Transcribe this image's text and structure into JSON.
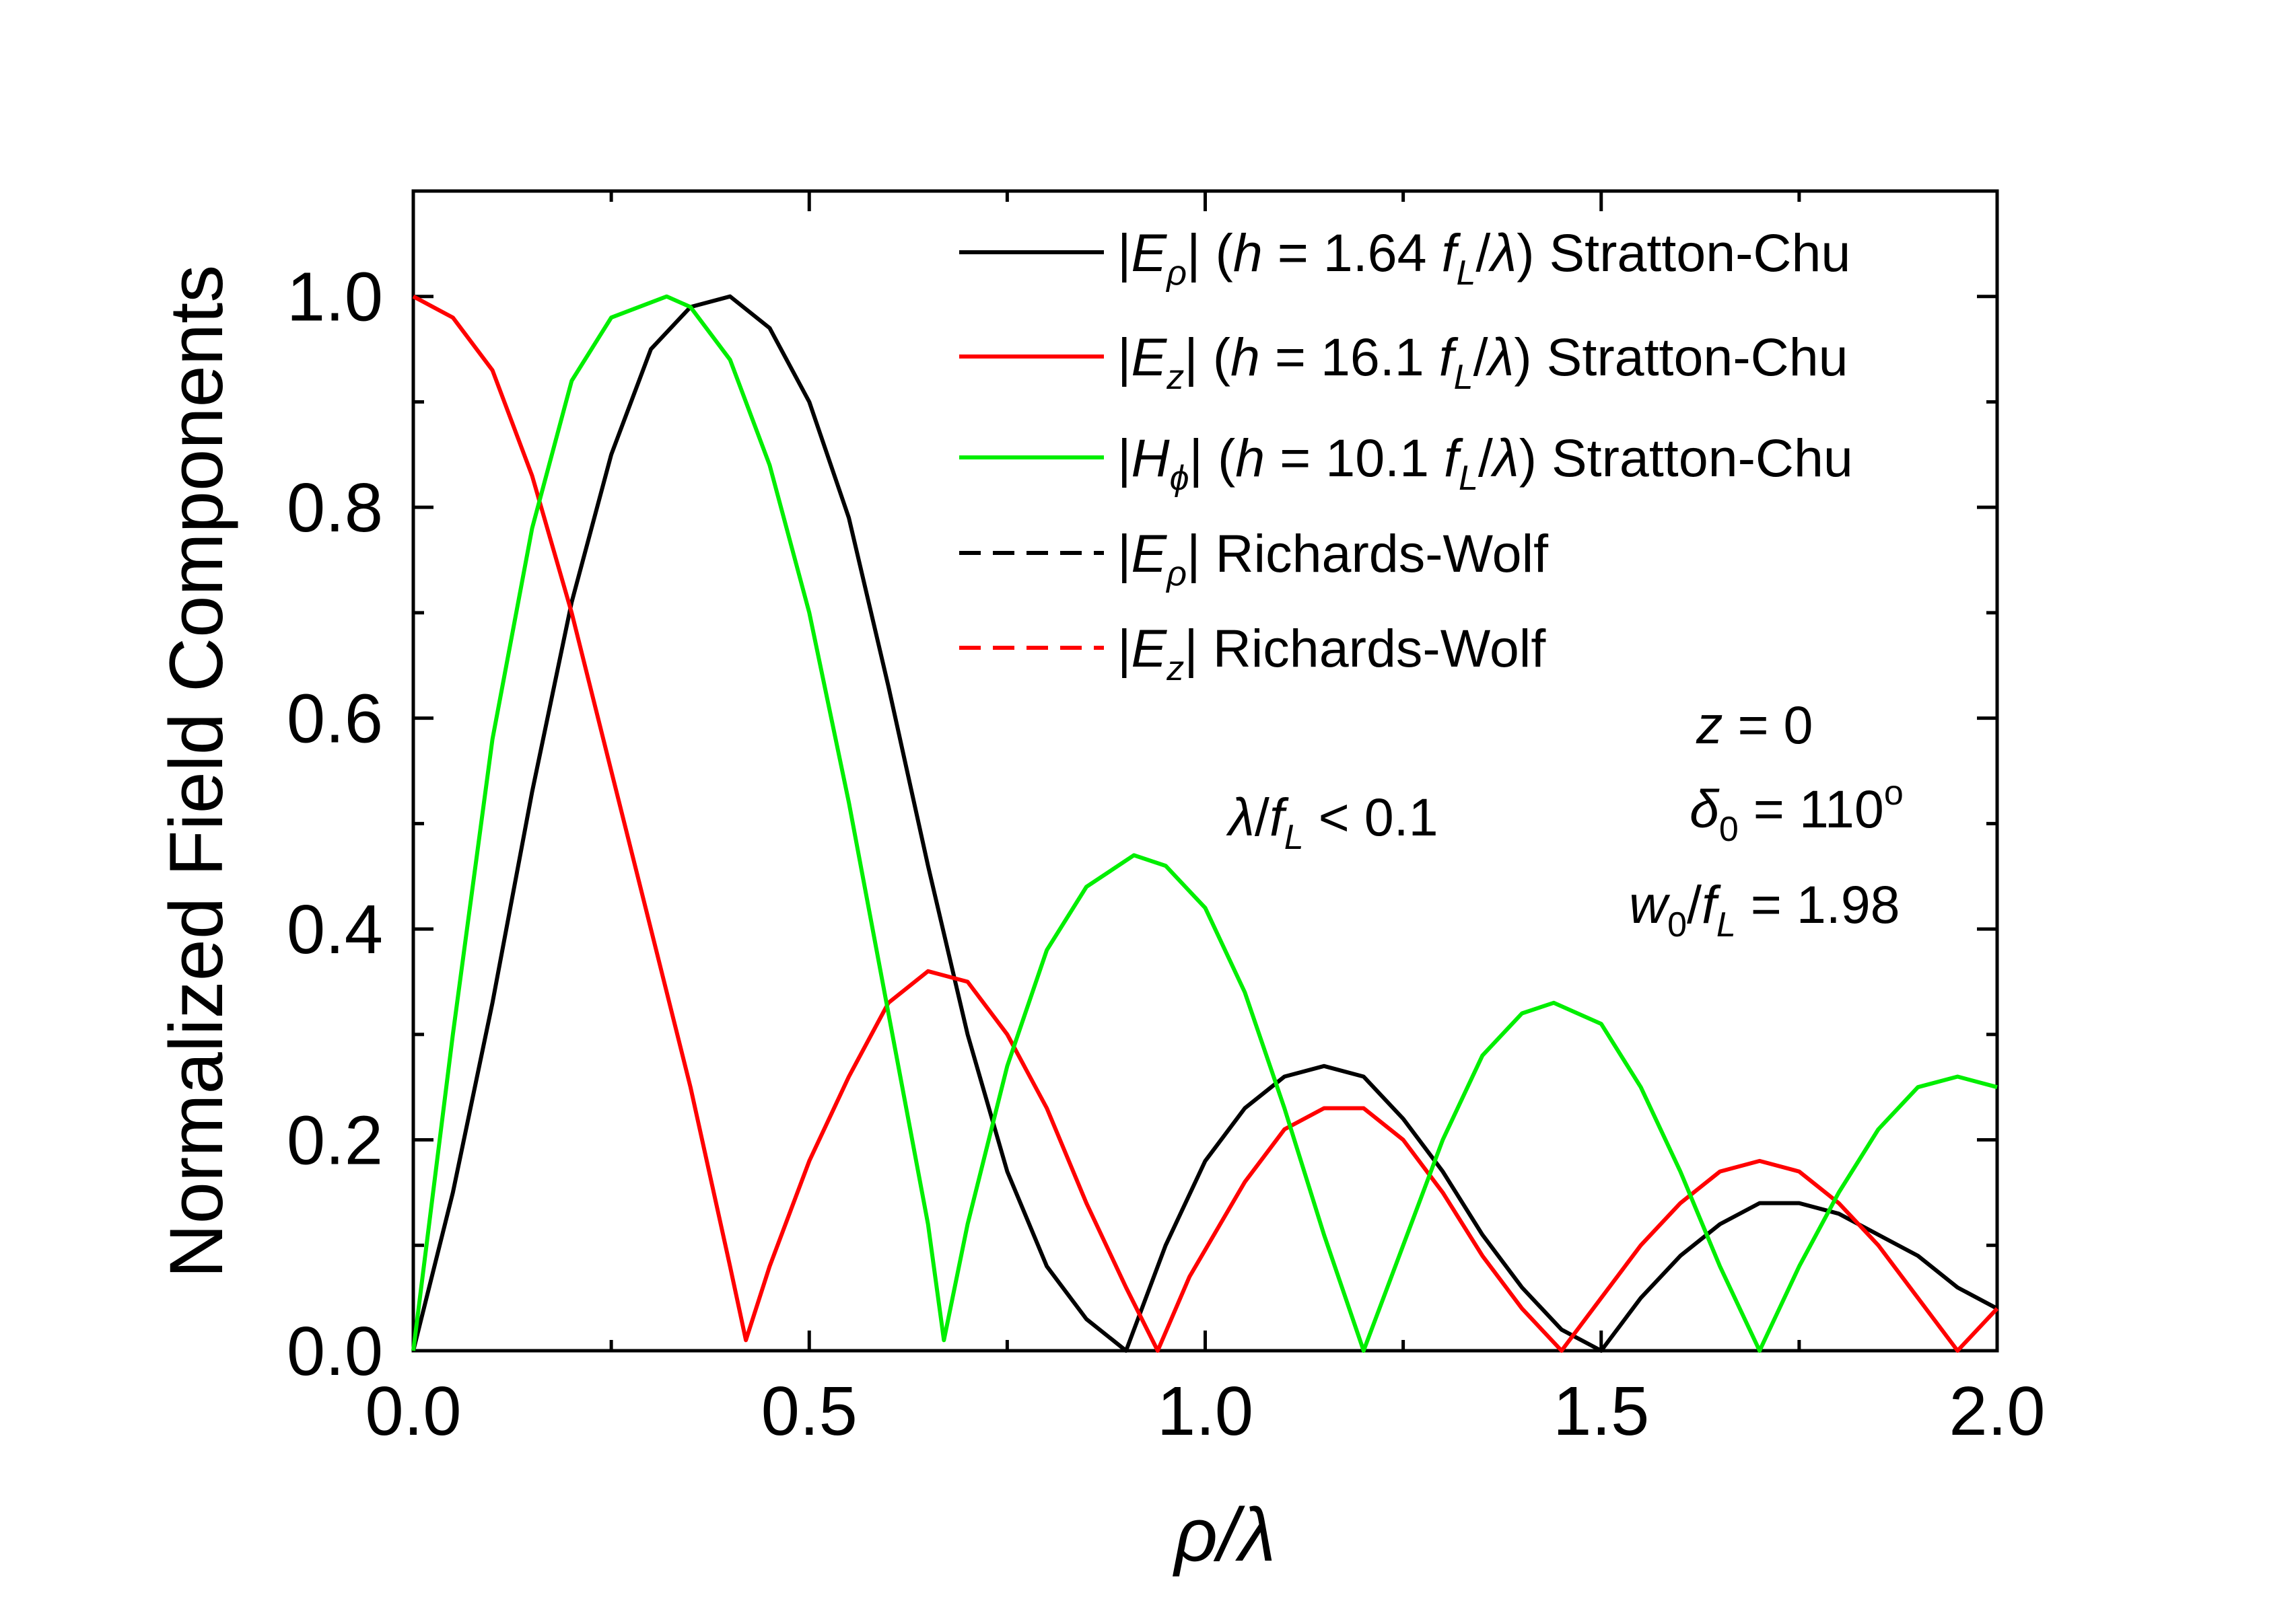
{
  "chart_data": {
    "type": "line",
    "xlabel_parts": [
      "ρ",
      "/",
      "λ"
    ],
    "ylabel": "Normalized Field Components",
    "xlim": [
      0,
      2.0
    ],
    "ylim": [
      0,
      1.1
    ],
    "x_ticks": [
      "0.0",
      "0.5",
      "1.0",
      "1.5",
      "2.0"
    ],
    "y_ticks": [
      "0.0",
      "0.2",
      "0.4",
      "0.6",
      "0.8",
      "1.0"
    ],
    "legend_position": "top-right",
    "series": [
      {
        "name": "|Eρ| (h = 1.64 fL/λ) Stratton-Chu",
        "color": "#000000",
        "dash": "solid",
        "points": [
          [
            0.0,
            0.0
          ],
          [
            0.05,
            0.15
          ],
          [
            0.1,
            0.33
          ],
          [
            0.15,
            0.53
          ],
          [
            0.2,
            0.71
          ],
          [
            0.25,
            0.85
          ],
          [
            0.3,
            0.95
          ],
          [
            0.35,
            0.99
          ],
          [
            0.4,
            1.0
          ],
          [
            0.45,
            0.97
          ],
          [
            0.5,
            0.9
          ],
          [
            0.55,
            0.79
          ],
          [
            0.6,
            0.63
          ],
          [
            0.65,
            0.46
          ],
          [
            0.7,
            0.3
          ],
          [
            0.75,
            0.17
          ],
          [
            0.8,
            0.08
          ],
          [
            0.85,
            0.03
          ],
          [
            0.9,
            0.0
          ],
          [
            0.95,
            0.1
          ],
          [
            1.0,
            0.18
          ],
          [
            1.05,
            0.23
          ],
          [
            1.1,
            0.26
          ],
          [
            1.15,
            0.27
          ],
          [
            1.2,
            0.26
          ],
          [
            1.25,
            0.22
          ],
          [
            1.3,
            0.17
          ],
          [
            1.35,
            0.11
          ],
          [
            1.4,
            0.06
          ],
          [
            1.45,
            0.02
          ],
          [
            1.5,
            0.0
          ],
          [
            1.55,
            0.05
          ],
          [
            1.6,
            0.09
          ],
          [
            1.65,
            0.12
          ],
          [
            1.7,
            0.14
          ],
          [
            1.75,
            0.14
          ],
          [
            1.8,
            0.13
          ],
          [
            1.85,
            0.11
          ],
          [
            1.9,
            0.09
          ],
          [
            1.95,
            0.06
          ],
          [
            2.0,
            0.04
          ]
        ]
      },
      {
        "name": "|Ez| (h = 16.1 fL/λ) Stratton-Chu",
        "color": "#ff0000",
        "dash": "solid",
        "points": [
          [
            0.0,
            1.0
          ],
          [
            0.05,
            0.98
          ],
          [
            0.1,
            0.93
          ],
          [
            0.15,
            0.83
          ],
          [
            0.2,
            0.7
          ],
          [
            0.25,
            0.55
          ],
          [
            0.3,
            0.4
          ],
          [
            0.35,
            0.25
          ],
          [
            0.4,
            0.08
          ],
          [
            0.42,
            0.01
          ],
          [
            0.45,
            0.08
          ],
          [
            0.5,
            0.18
          ],
          [
            0.55,
            0.26
          ],
          [
            0.6,
            0.33
          ],
          [
            0.65,
            0.36
          ],
          [
            0.7,
            0.35
          ],
          [
            0.75,
            0.3
          ],
          [
            0.8,
            0.23
          ],
          [
            0.85,
            0.14
          ],
          [
            0.9,
            0.06
          ],
          [
            0.94,
            0.0
          ],
          [
            0.98,
            0.07
          ],
          [
            1.05,
            0.16
          ],
          [
            1.1,
            0.21
          ],
          [
            1.15,
            0.23
          ],
          [
            1.2,
            0.23
          ],
          [
            1.25,
            0.2
          ],
          [
            1.3,
            0.15
          ],
          [
            1.35,
            0.09
          ],
          [
            1.4,
            0.04
          ],
          [
            1.45,
            0.0
          ],
          [
            1.5,
            0.05
          ],
          [
            1.55,
            0.1
          ],
          [
            1.6,
            0.14
          ],
          [
            1.65,
            0.17
          ],
          [
            1.7,
            0.18
          ],
          [
            1.75,
            0.17
          ],
          [
            1.8,
            0.14
          ],
          [
            1.85,
            0.1
          ],
          [
            1.9,
            0.05
          ],
          [
            1.95,
            0.0
          ],
          [
            2.0,
            0.04
          ]
        ]
      },
      {
        "name": "|Hϕ| (h = 10.1 fL/λ) Stratton-Chu",
        "color": "#00ee00",
        "dash": "solid",
        "points": [
          [
            0.0,
            0.0
          ],
          [
            0.05,
            0.3
          ],
          [
            0.1,
            0.58
          ],
          [
            0.15,
            0.78
          ],
          [
            0.2,
            0.92
          ],
          [
            0.25,
            0.98
          ],
          [
            0.32,
            1.0
          ],
          [
            0.35,
            0.99
          ],
          [
            0.4,
            0.94
          ],
          [
            0.45,
            0.84
          ],
          [
            0.5,
            0.7
          ],
          [
            0.55,
            0.52
          ],
          [
            0.6,
            0.32
          ],
          [
            0.65,
            0.12
          ],
          [
            0.67,
            0.01
          ],
          [
            0.7,
            0.12
          ],
          [
            0.75,
            0.27
          ],
          [
            0.8,
            0.38
          ],
          [
            0.85,
            0.44
          ],
          [
            0.91,
            0.47
          ],
          [
            0.95,
            0.46
          ],
          [
            1.0,
            0.42
          ],
          [
            1.05,
            0.34
          ],
          [
            1.1,
            0.23
          ],
          [
            1.15,
            0.11
          ],
          [
            1.2,
            0.0
          ],
          [
            1.25,
            0.1
          ],
          [
            1.3,
            0.2
          ],
          [
            1.35,
            0.28
          ],
          [
            1.4,
            0.32
          ],
          [
            1.44,
            0.33
          ],
          [
            1.5,
            0.31
          ],
          [
            1.55,
            0.25
          ],
          [
            1.6,
            0.17
          ],
          [
            1.65,
            0.08
          ],
          [
            1.7,
            0.0
          ],
          [
            1.75,
            0.08
          ],
          [
            1.8,
            0.15
          ],
          [
            1.85,
            0.21
          ],
          [
            1.9,
            0.25
          ],
          [
            1.95,
            0.26
          ],
          [
            2.0,
            0.25
          ]
        ]
      },
      {
        "name": "|Eρ| Richards-Wolf",
        "color": "#000000",
        "dash": "dashed",
        "points": []
      },
      {
        "name": "|Ez| Richards-Wolf",
        "color": "#ff0000",
        "dash": "dashed",
        "points": []
      }
    ],
    "annotations": [
      {
        "text": "λ/fL < 0.1"
      },
      {
        "text": "z = 0"
      },
      {
        "text": "δ0 = 110o"
      },
      {
        "text": "w0/fL = 1.98"
      }
    ]
  },
  "labels": {
    "legend": [
      {
        "a": "|",
        "b": "E",
        "sub": "ρ",
        "c": "| (",
        "h": "h",
        "d": " = 1.64 ",
        "f": "f",
        "fsub": "L",
        "e": "/",
        "lam": "λ",
        "tail": ") Stratton-Chu"
      },
      {
        "a": "|",
        "b": "E",
        "sub": "z",
        "c": "| (",
        "h": "h",
        "d": " = 16.1 ",
        "f": "f",
        "fsub": "L",
        "e": "/",
        "lam": "λ",
        "tail": ") Stratton-Chu"
      },
      {
        "a": "|",
        "b": "H",
        "sub": "ϕ",
        "c": "| (",
        "h": "h",
        "d": " = 10.1 ",
        "f": "f",
        "fsub": "L",
        "e": "/",
        "lam": "λ",
        "tail": ") Stratton-Chu"
      },
      {
        "a": "|",
        "b": "E",
        "sub": "ρ",
        "tail": "| Richards-Wolf"
      },
      {
        "a": "|",
        "b": "E",
        "sub": "z",
        "tail": "| Richards-Wolf"
      }
    ],
    "annot_lambda": {
      "lam": "λ",
      "slash": "/",
      "f": "f",
      "sub": "L",
      "rest": " < 0.1"
    },
    "annot_z": {
      "z": "z",
      "rest": " = 0"
    },
    "annot_delta": {
      "d": "δ",
      "sub": "0",
      "rest": " = 110",
      "sup": "o"
    },
    "annot_w": {
      "w": "w",
      "sub": "0",
      "slash": "/",
      "f": "f",
      "fsub": "L",
      "rest": " = 1.98"
    }
  }
}
